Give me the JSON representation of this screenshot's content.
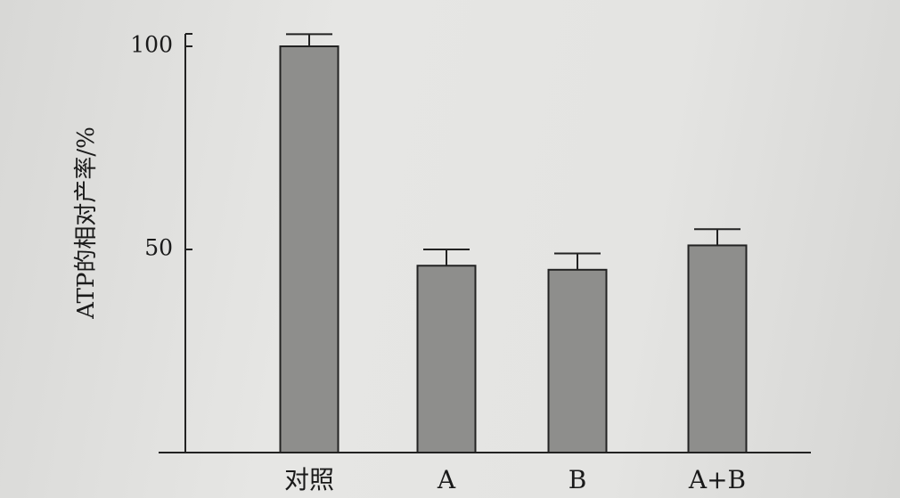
{
  "chart_data": {
    "type": "bar",
    "title": "",
    "xlabel": "",
    "ylabel": "ATP的相对产率/%",
    "categories": [
      "对照",
      "A",
      "B",
      "A+B"
    ],
    "values": [
      100,
      46,
      45,
      51
    ],
    "error": [
      3,
      4,
      4,
      4
    ],
    "yticks": [
      50,
      100
    ],
    "ylim": [
      0,
      105
    ],
    "grid": false,
    "colors": {
      "bar": "#8e8e8c",
      "line": "#222222"
    }
  }
}
